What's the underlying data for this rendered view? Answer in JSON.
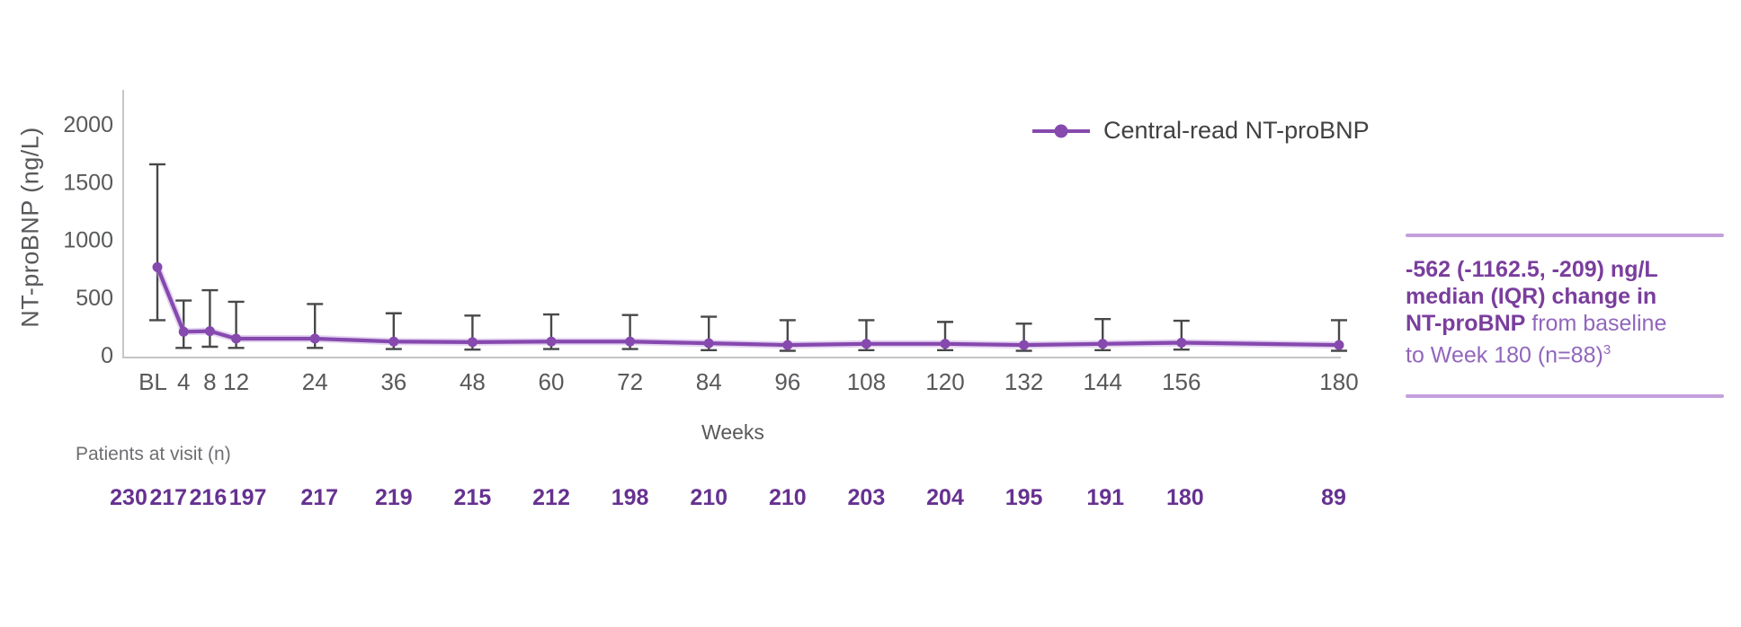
{
  "colors": {
    "series_purple": "#8649ae",
    "series_halo_purple": "#c4a0e0",
    "error_bar": "#47484a",
    "axis_gray": "#c6c6c6",
    "tick_text_gray": "#58595b",
    "patients_count_purple": "#663190",
    "callout_bold_purple": "#7a3e9d",
    "callout_regular_purple": "#9166bd",
    "callout_divider_purple": "#c3a0dc",
    "legend_text_gray": "#414042"
  },
  "legend": {
    "marker": "purple-line-dot",
    "label": "Central-read NT-proBNP"
  },
  "callout": {
    "lines": [
      {
        "bold": "-562 (-1162.5, -209) ng/L",
        "regular": ""
      },
      {
        "bold": "median (IQR) change in",
        "regular": ""
      },
      {
        "bold": "NT-proBNP",
        "regular": " from baseline"
      },
      {
        "bold": "",
        "regular": "to Week 180 (n=88)",
        "superscript": "3"
      }
    ]
  },
  "patients": {
    "label": "Patients at visit (n)",
    "counts": [
      230,
      217,
      216,
      197,
      217,
      219,
      215,
      212,
      198,
      210,
      210,
      203,
      204,
      195,
      191,
      180,
      89
    ]
  },
  "chart_data": {
    "type": "line",
    "title": "",
    "xlabel": "Weeks",
    "ylabel": "NT-proBNP (ng/L)",
    "ylim": [
      0,
      2000
    ],
    "y_ticks": [
      0,
      500,
      1000,
      1500,
      2000
    ],
    "x_tick_labels": [
      "BL",
      "4",
      "8",
      "12",
      "24",
      "36",
      "48",
      "60",
      "72",
      "84",
      "96",
      "108",
      "120",
      "132",
      "144",
      "156",
      "180"
    ],
    "grid": false,
    "legend_position": "top-right",
    "error_bars": "IQR (estimated from whiskers)",
    "series": [
      {
        "name": "Central-read NT-proBNP",
        "units": "ng/L",
        "x_weeks": [
          0,
          4,
          8,
          12,
          24,
          36,
          48,
          60,
          72,
          84,
          96,
          108,
          120,
          132,
          144,
          156,
          180
        ],
        "median": [
          760,
          200,
          205,
          140,
          140,
          115,
          110,
          115,
          115,
          100,
          85,
          95,
          95,
          85,
          95,
          105,
          85
        ],
        "iqr_low": [
          300,
          60,
          70,
          60,
          60,
          50,
          45,
          50,
          50,
          40,
          35,
          40,
          40,
          35,
          40,
          45,
          35
        ],
        "iqr_high": [
          1650,
          470,
          560,
          460,
          440,
          360,
          340,
          350,
          345,
          330,
          300,
          300,
          285,
          270,
          310,
          295,
          300
        ]
      }
    ]
  }
}
